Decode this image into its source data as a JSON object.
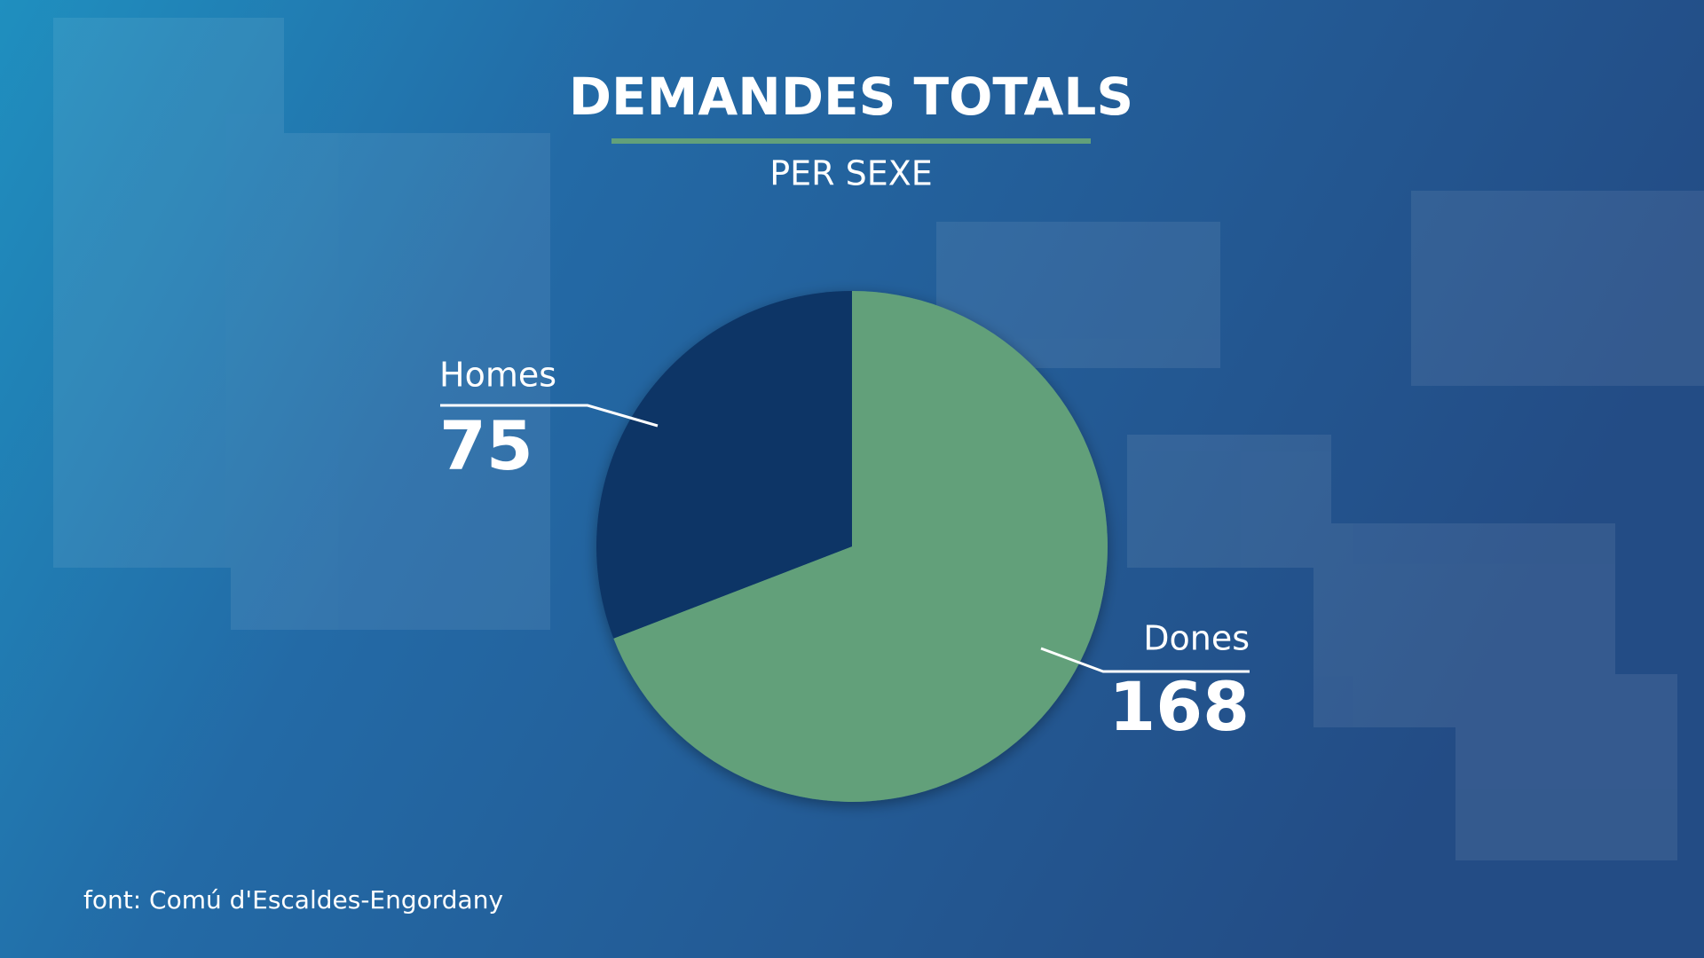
{
  "chart_data": {
    "type": "pie",
    "title": "DEMANDES TOTALS",
    "subtitle": "PER SEXE",
    "categories": [
      "Dones",
      "Homes"
    ],
    "values": [
      168,
      75
    ],
    "colors": [
      "#62a07a",
      "#0b3466"
    ],
    "source": "font: Comú d'Escaldes-Engordany"
  }
}
